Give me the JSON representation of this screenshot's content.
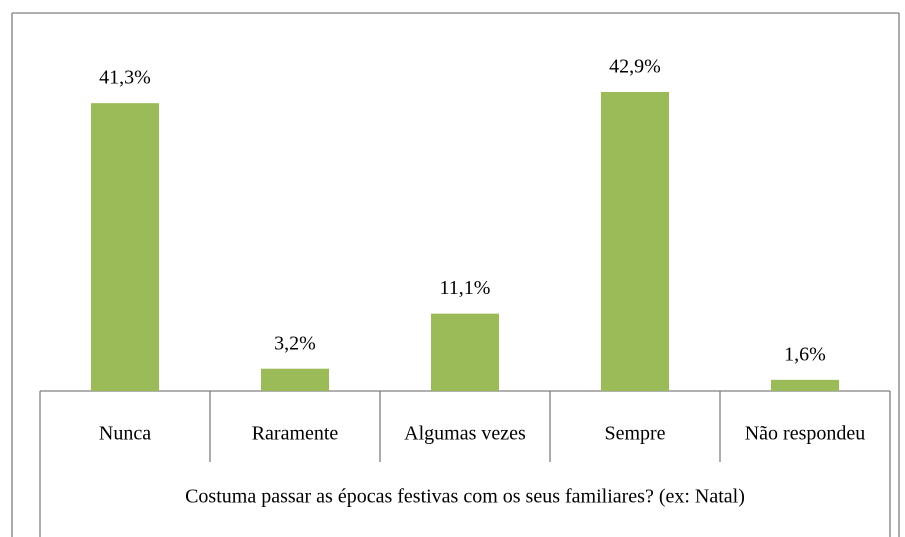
{
  "chart_data": {
    "type": "bar",
    "x_label": "Costuma passar as épocas festivas com os seus familiares? (ex: Natal)",
    "categories": [
      "Nunca",
      "Raramente",
      "Algumas vezes",
      "Sempre",
      "Não respondeu"
    ],
    "values": [
      41.3,
      3.2,
      11.1,
      42.9,
      1.6
    ],
    "value_labels": [
      "41,3%",
      "3,2%",
      "11,1%",
      "42,9%",
      "1,6%"
    ],
    "color": "#9bbb59"
  }
}
